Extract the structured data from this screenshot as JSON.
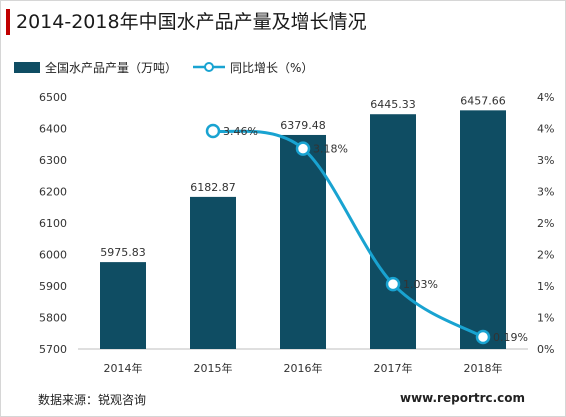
{
  "title": "2014-2018年中国水产品产量及增长情况",
  "source": "数据来源：锐观咨询",
  "website": "www.reportrc.com",
  "colors": {
    "bar": "#0f4d63",
    "line": "#19a3d1",
    "accent": "#c00000"
  },
  "chart_data": {
    "type": "bar",
    "categories": [
      "2014年",
      "2015年",
      "2016年",
      "2017年",
      "2018年"
    ],
    "series": [
      {
        "name": "全国水产品产量（万吨）",
        "type": "bar",
        "axis": "left",
        "values": [
          5975.83,
          6182.87,
          6379.48,
          6445.33,
          6457.66
        ],
        "labels": [
          "5975.83",
          "6182.87",
          "6379.48",
          "6445.33",
          "6457.66"
        ]
      },
      {
        "name": "同比增长（%）",
        "type": "line",
        "axis": "right",
        "values": [
          null,
          3.46,
          3.18,
          1.03,
          0.19
        ],
        "labels": [
          "",
          "3.46%",
          "3.18%",
          "1.03%",
          "0.19%"
        ]
      }
    ],
    "y_left": {
      "min": 5700,
      "max": 6500,
      "ticks": [
        "5700",
        "5800",
        "5900",
        "6000",
        "6100",
        "6200",
        "6300",
        "6400",
        "6500"
      ]
    },
    "y_right": {
      "min": 0,
      "max": 4,
      "ticks": [
        "0%",
        "1%",
        "1%",
        "2%",
        "2%",
        "3%",
        "3%",
        "4%",
        "4%"
      ]
    },
    "legend_position": "top-left",
    "grid": false
  }
}
